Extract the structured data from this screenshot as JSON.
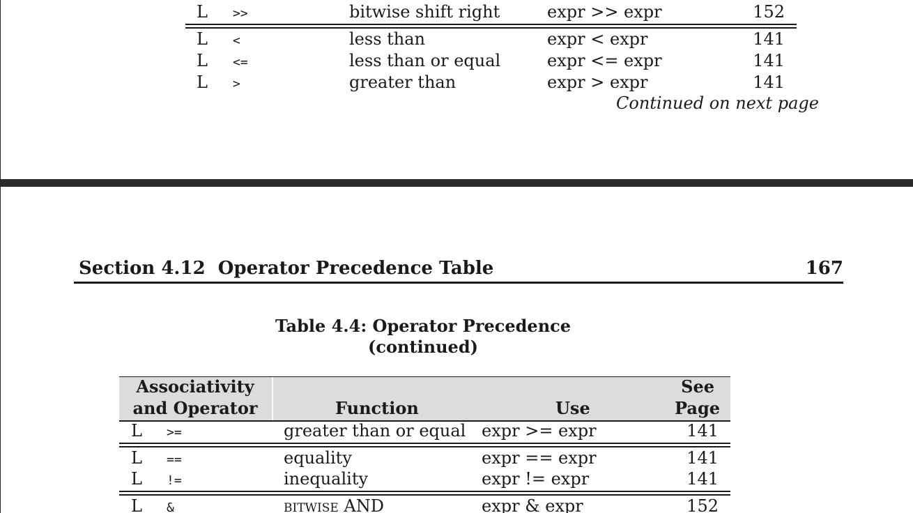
{
  "top_page": {
    "rows": [
      {
        "assoc": "L",
        "op": ">>",
        "function": "bitwise shift right",
        "use": "expr >> expr",
        "page": "152"
      },
      {
        "assoc": "L",
        "op": "<",
        "function": "less than",
        "use": "expr < expr",
        "page": "141"
      },
      {
        "assoc": "L",
        "op": "<=",
        "function": "less than or equal",
        "use": "expr <= expr",
        "page": "141"
      },
      {
        "assoc": "L",
        "op": ">",
        "function": "greater than",
        "use": "expr > expr",
        "page": "141"
      }
    ],
    "continued_note": "Continued on next page"
  },
  "bottom_page": {
    "section_title": "Section 4.12  Operator Precedence Table",
    "page_number": "167",
    "table_caption_line1": "Table 4.4: Operator Precedence",
    "table_caption_line2": "(continued)",
    "headers": {
      "assoc_line1": "Associativity",
      "assoc_line2": "and Operator",
      "function": "Function",
      "use": "Use",
      "page_line1": "See",
      "page_line2": "Page"
    },
    "rows": [
      {
        "assoc": "L",
        "op": ">=",
        "function": "greater than or equal",
        "use": "expr >= expr",
        "page": "141"
      },
      {
        "assoc": "L",
        "op": "==",
        "function": "equality",
        "use": "expr == expr",
        "page": "141"
      },
      {
        "assoc": "L",
        "op": "!=",
        "function": "inequality",
        "use": "expr != expr",
        "page": "141"
      },
      {
        "assoc": "L",
        "op": "&",
        "function": "bitwise AND",
        "use": "expr & expr",
        "page": "152"
      }
    ]
  }
}
